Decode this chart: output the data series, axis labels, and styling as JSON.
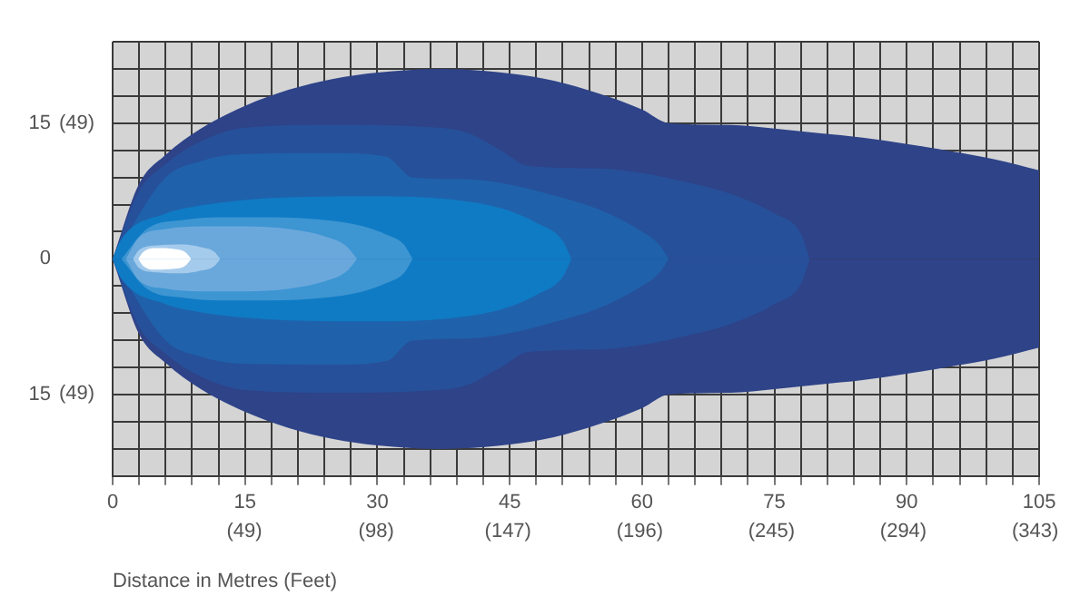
{
  "chart_data": {
    "type": "area",
    "xlabel": "Distance in Metres (Feet)",
    "xlim": [
      0,
      105
    ],
    "ylim": [
      -24,
      24
    ],
    "xticks": [
      0,
      {
        "value": 3,
        "label": null
      },
      {
        "value": 6,
        "label": null
      },
      {
        "value": 9,
        "label": null
      },
      {
        "value": 12,
        "label": null
      },
      15,
      {
        "value": 18,
        "label": null
      },
      {
        "value": 21,
        "label": null
      },
      {
        "value": 24,
        "label": null
      },
      {
        "value": 27,
        "label": null
      },
      30,
      {
        "value": 33,
        "label": null
      },
      {
        "value": 36,
        "label": null
      },
      {
        "value": 39,
        "label": null
      },
      {
        "value": 42,
        "label": null
      },
      45,
      {
        "value": 48,
        "label": null
      },
      {
        "value": 51,
        "label": null
      },
      {
        "value": 54,
        "label": null
      },
      {
        "value": 57,
        "label": null
      },
      60,
      {
        "value": 63,
        "label": null
      },
      {
        "value": 66,
        "label": null
      },
      {
        "value": 69,
        "label": null
      },
      {
        "value": 72,
        "label": null
      },
      75,
      {
        "value": 78,
        "label": null
      },
      {
        "value": 81,
        "label": null
      },
      {
        "value": 84,
        "label": null
      },
      {
        "value": 87,
        "label": null
      },
      90,
      {
        "value": 93,
        "label": null
      },
      {
        "value": 96,
        "label": null
      },
      {
        "value": 99,
        "label": null
      },
      {
        "value": 102,
        "label": null
      },
      105
    ],
    "x2lim": [
      0,
      344.49
    ],
    "x2ticks": [
      {
        "value": 49,
        "label": "(49)"
      },
      {
        "value": 98,
        "label": "(98)"
      },
      {
        "value": 147,
        "label": "(147)"
      },
      {
        "value": 196,
        "label": "(196)"
      },
      {
        "value": 245,
        "label": "(245)"
      },
      {
        "value": 294,
        "label": "(294)"
      },
      {
        "value": 343,
        "label": "(343)"
      }
    ],
    "yticks": [
      {
        "value": -24,
        "label": null
      },
      {
        "value": -21,
        "label": null
      },
      {
        "value": -18,
        "label": null
      },
      {
        "value": -15,
        "label": "15"
      },
      {
        "value": -12,
        "label": null
      },
      {
        "value": -9,
        "label": null
      },
      {
        "value": -6,
        "label": null
      },
      {
        "value": -3,
        "label": null
      },
      0,
      {
        "value": 3,
        "label": null
      },
      {
        "value": 6,
        "label": null
      },
      {
        "value": 9,
        "label": null
      },
      {
        "value": 12,
        "label": null
      },
      15,
      {
        "value": 18,
        "label": null
      },
      {
        "value": 21,
        "label": null
      },
      {
        "value": 24,
        "label": null
      }
    ],
    "y2lim": [
      -78.74,
      78.74
    ],
    "y2ticks": [
      {
        "value": -49,
        "label": "(49)"
      },
      {
        "value": 49,
        "label": "(49)"
      }
    ],
    "grid": true,
    "series": [
      {
        "type": "area",
        "color": "#2e4388",
        "x": [
          0,
          3,
          6,
          10,
          15,
          20,
          25,
          30,
          37,
          45,
          50,
          55,
          60,
          63,
          70,
          75,
          80,
          85,
          90,
          95,
          100,
          105
        ],
        "values": [
          0,
          8.3,
          11.5,
          14.4,
          16.9,
          18.7,
          19.9,
          20.6,
          21,
          20.5,
          19.7,
          18.3,
          16.5,
          15,
          14.8,
          14.4,
          13.9,
          13.4,
          12.7,
          11.9,
          11,
          9.8
        ]
      },
      {
        "type": "area",
        "color": "#2e4388",
        "x": [
          0,
          3,
          6,
          10,
          15,
          20,
          25,
          30,
          37,
          45,
          50,
          55,
          60,
          63,
          70,
          75,
          80,
          85,
          90,
          95,
          100,
          105
        ],
        "values": [
          0,
          -8.3,
          -11.5,
          -14.4,
          -16.9,
          -18.7,
          -19.9,
          -20.6,
          -21,
          -20.5,
          -19.7,
          -18.3,
          -16.5,
          -15,
          -14.8,
          -14.4,
          -13.9,
          -13.4,
          -12.7,
          -11.9,
          -11,
          -9.8
        ]
      },
      {
        "type": "area",
        "color": "#27509a",
        "x": [
          0,
          3,
          6,
          10,
          15,
          25,
          35,
          40,
          44,
          47,
          55,
          60,
          65,
          70,
          75,
          78,
          79
        ],
        "values": [
          0,
          7.5,
          10.5,
          13,
          14.5,
          14.8,
          14.6,
          14,
          12,
          10.3,
          10,
          9.5,
          8.5,
          7.2,
          5,
          2.8,
          0
        ]
      },
      {
        "type": "area",
        "color": "#27509a",
        "x": [
          0,
          3,
          6,
          10,
          15,
          25,
          35,
          40,
          44,
          47,
          55,
          60,
          65,
          70,
          75,
          78,
          79
        ],
        "values": [
          0,
          -7.5,
          -10.5,
          -13,
          -14.5,
          -14.8,
          -14.6,
          -14,
          -12,
          -10.3,
          -10,
          -9.5,
          -8.5,
          -7.2,
          -5,
          -2.8,
          0
        ]
      },
      {
        "type": "area",
        "color": "#1f62ab",
        "x": [
          0,
          6,
          10,
          15,
          25,
          31,
          34,
          40,
          45,
          50,
          55,
          60,
          62,
          63
        ],
        "values": [
          0,
          9,
          10.8,
          11.6,
          11.7,
          11.3,
          9,
          8.8,
          8.2,
          7,
          5.5,
          3,
          1.5,
          0
        ]
      },
      {
        "type": "area",
        "color": "#1f62ab",
        "x": [
          0,
          6,
          10,
          15,
          25,
          31,
          34,
          40,
          45,
          50,
          55,
          60,
          62,
          63
        ],
        "values": [
          0,
          -9,
          -10.8,
          -11.6,
          -11.7,
          -11.3,
          -9,
          -8.8,
          -8.2,
          -7,
          -5.5,
          -3,
          -1.5,
          0
        ]
      },
      {
        "type": "area",
        "color": "#0f7bc4",
        "x": [
          0,
          1,
          6,
          10,
          15,
          20,
          30,
          38,
          44,
          48,
          51,
          52
        ],
        "values": [
          0,
          2.2,
          5,
          5.9,
          6.5,
          6.8,
          6.9,
          6.6,
          5.6,
          4,
          2,
          0
        ]
      },
      {
        "type": "area",
        "color": "#0f7bc4",
        "x": [
          0,
          1,
          6,
          10,
          15,
          20,
          30,
          38,
          44,
          48,
          51,
          52
        ],
        "values": [
          0,
          -2.2,
          -5,
          -5.9,
          -6.5,
          -6.8,
          -6.9,
          -6.6,
          -5.6,
          -4,
          -2,
          0
        ]
      },
      {
        "type": "area",
        "color": "#3d95d2",
        "x": [
          1,
          4,
          8,
          12,
          18,
          24,
          28,
          31,
          33,
          34
        ],
        "values": [
          0,
          3.4,
          4.3,
          4.6,
          4.6,
          4.3,
          3.7,
          2.7,
          1.6,
          0
        ]
      },
      {
        "type": "area",
        "color": "#3d95d2",
        "x": [
          1,
          4,
          8,
          12,
          18,
          24,
          28,
          31,
          33,
          34
        ],
        "values": [
          0,
          -3.4,
          -4.3,
          -4.6,
          -4.6,
          -4.3,
          -3.7,
          -2.7,
          -1.6,
          0
        ]
      },
      {
        "type": "area",
        "color": "#6aa8dc",
        "x": [
          1.5,
          3,
          6,
          10,
          15,
          20,
          24,
          26.5,
          27.7
        ],
        "values": [
          0,
          2.4,
          3.3,
          3.6,
          3.6,
          3.3,
          2.5,
          1.4,
          0
        ]
      },
      {
        "type": "area",
        "color": "#6aa8dc",
        "x": [
          1.5,
          3,
          6,
          10,
          15,
          20,
          24,
          26.5,
          27.7
        ],
        "values": [
          0,
          -2.4,
          -3.3,
          -3.6,
          -3.6,
          -3.3,
          -2.5,
          -1.4,
          0
        ]
      },
      {
        "type": "area",
        "color": "#a5cbec",
        "x": [
          2.3,
          3,
          5,
          8,
          10,
          11.5,
          12.2
        ],
        "values": [
          0,
          1,
          1.5,
          1.6,
          1.3,
          0.8,
          0
        ]
      },
      {
        "type": "area",
        "color": "#a5cbec",
        "x": [
          2.3,
          3,
          5,
          8,
          10,
          11.5,
          12.2
        ],
        "values": [
          0,
          -1,
          -1.5,
          -1.6,
          -1.3,
          -0.8,
          0
        ]
      },
      {
        "type": "area",
        "color": "#ffffff",
        "x": [
          2.9,
          3.5,
          5,
          7,
          8.3,
          8.9
        ],
        "values": [
          0,
          0.8,
          1.2,
          1.1,
          0.7,
          0
        ]
      },
      {
        "type": "area",
        "color": "#ffffff",
        "x": [
          2.9,
          3.5,
          5,
          7,
          8.3,
          8.9
        ],
        "values": [
          0,
          -0.8,
          -1.2,
          -1.1,
          -0.7,
          0
        ]
      }
    ]
  }
}
